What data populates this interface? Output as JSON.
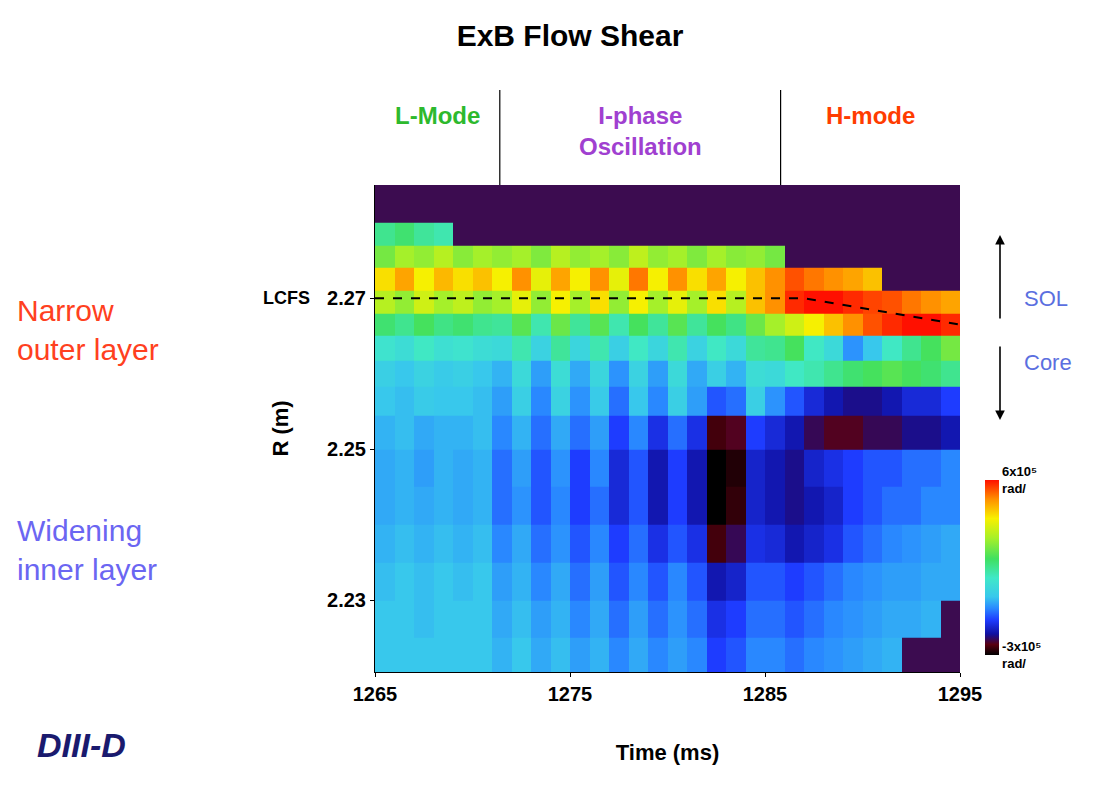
{
  "chart_data": {
    "type": "heatmap",
    "title": "ExB Flow Shear",
    "x_label": "Time (ms)",
    "y_label": "R (m)",
    "xlim": [
      1265,
      1295
    ],
    "xticks": [
      1265,
      1275,
      1285,
      1295
    ],
    "ylim": [
      2.2205,
      2.285
    ],
    "yticks": [
      2.23,
      2.25,
      2.27
    ],
    "grid": false,
    "zlim": [
      -300000,
      600000
    ],
    "zticks": [
      {
        "value": -300000,
        "label": "-3x10⁵ rad/"
      },
      {
        "value": 600000,
        "label": "6x10⁵ rad/"
      }
    ],
    "x": [
      1265.5,
      1266.5,
      1267.5,
      1268.5,
      1269.5,
      1270.5,
      1271.5,
      1272.5,
      1273.5,
      1274.5,
      1275.5,
      1276.5,
      1277.5,
      1278.5,
      1279.5,
      1280.5,
      1281.5,
      1282.5,
      1283.5,
      1284.5,
      1285.5,
      1286.5,
      1287.5,
      1288.5,
      1289.5,
      1290.5,
      1291.5,
      1292.5,
      1293.5,
      1294.5
    ],
    "y": [
      2.2225,
      2.2275,
      2.2325,
      2.2375,
      2.2425,
      2.2475,
      2.2525,
      2.2565,
      2.26,
      2.2635,
      2.2665,
      2.2695,
      2.2725,
      2.2755,
      2.2785
    ],
    "z": [
      [
        0,
        0,
        0,
        0,
        0,
        0,
        -20000,
        0,
        -30000,
        -10000,
        -40000,
        -20000,
        -60000,
        -30000,
        -60000,
        -40000,
        -60000,
        -120000,
        -100000,
        -60000,
        -60000,
        -80000,
        -60000,
        -50000,
        -40000,
        -30000,
        -20000,
        null,
        null,
        null
      ],
      [
        0,
        0,
        -10000,
        0,
        0,
        0,
        -30000,
        -10000,
        -40000,
        -20000,
        -60000,
        -30000,
        -80000,
        -40000,
        -80000,
        -50000,
        -80000,
        -140000,
        -120000,
        -80000,
        -80000,
        -100000,
        -80000,
        -60000,
        -50000,
        -40000,
        -30000,
        -30000,
        -20000,
        null
      ],
      [
        -10000,
        0,
        -10000,
        0,
        -10000,
        0,
        -40000,
        -20000,
        -60000,
        -30000,
        -80000,
        -40000,
        -100000,
        -60000,
        -100000,
        -60000,
        -100000,
        -180000,
        -160000,
        -100000,
        -100000,
        -120000,
        -100000,
        -80000,
        -60000,
        -50000,
        -40000,
        -40000,
        -30000,
        -30000
      ],
      [
        -20000,
        -10000,
        -20000,
        -10000,
        -20000,
        -10000,
        -60000,
        -30000,
        -80000,
        -50000,
        -100000,
        -60000,
        -120000,
        -80000,
        -140000,
        -100000,
        -140000,
        -260000,
        -220000,
        -140000,
        -150000,
        -180000,
        -160000,
        -140000,
        -100000,
        -80000,
        -60000,
        -50000,
        -40000,
        -30000
      ],
      [
        -30000,
        -20000,
        -30000,
        -20000,
        -30000,
        -20000,
        -80000,
        -50000,
        -100000,
        -60000,
        -120000,
        -80000,
        -150000,
        -100000,
        -180000,
        -120000,
        -180000,
        -300000,
        -270000,
        -160000,
        -180000,
        -200000,
        -180000,
        -160000,
        -120000,
        -100000,
        -80000,
        -80000,
        -60000,
        -60000
      ],
      [
        -30000,
        -20000,
        -40000,
        -20000,
        -30000,
        -20000,
        -80000,
        -40000,
        -100000,
        -50000,
        -120000,
        -60000,
        -150000,
        -100000,
        -180000,
        -120000,
        -180000,
        -300000,
        -280000,
        -160000,
        -180000,
        -200000,
        -160000,
        -140000,
        -120000,
        -100000,
        -100000,
        -80000,
        -80000,
        -60000
      ],
      [
        -20000,
        -10000,
        -30000,
        -20000,
        -20000,
        -10000,
        -60000,
        -20000,
        -80000,
        -30000,
        -80000,
        -40000,
        -120000,
        -60000,
        -140000,
        -80000,
        -140000,
        -260000,
        -240000,
        -120000,
        -150000,
        -180000,
        -220000,
        -240000,
        -240000,
        -220000,
        -220000,
        -200000,
        -200000,
        -180000
      ],
      [
        0,
        -10000,
        10000,
        0,
        0,
        -10000,
        -40000,
        20000,
        -60000,
        30000,
        -50000,
        10000,
        -80000,
        0,
        -60000,
        20000,
        -40000,
        -100000,
        -80000,
        20000,
        -50000,
        -100000,
        -150000,
        -180000,
        -200000,
        -200000,
        -180000,
        -150000,
        -150000,
        -120000
      ],
      [
        20000,
        0,
        30000,
        10000,
        20000,
        0,
        -20000,
        50000,
        -40000,
        60000,
        -30000,
        40000,
        -50000,
        30000,
        -40000,
        50000,
        -30000,
        20000,
        -20000,
        60000,
        50000,
        100000,
        120000,
        150000,
        180000,
        200000,
        220000,
        200000,
        180000,
        150000
      ],
      [
        80000,
        60000,
        100000,
        70000,
        80000,
        60000,
        50000,
        120000,
        30000,
        140000,
        40000,
        120000,
        20000,
        100000,
        40000,
        120000,
        30000,
        100000,
        50000,
        140000,
        150000,
        200000,
        100000,
        50000,
        -50000,
        0,
        100000,
        150000,
        200000,
        250000
      ],
      [
        180000,
        150000,
        200000,
        160000,
        180000,
        150000,
        140000,
        220000,
        120000,
        240000,
        140000,
        220000,
        120000,
        200000,
        140000,
        220000,
        140000,
        200000,
        160000,
        240000,
        300000,
        350000,
        400000,
        450000,
        500000,
        550000,
        580000,
        600000,
        600000,
        580000
      ],
      [
        320000,
        280000,
        350000,
        300000,
        330000,
        280000,
        300000,
        380000,
        280000,
        400000,
        300000,
        420000,
        280000,
        400000,
        300000,
        380000,
        300000,
        420000,
        320000,
        450000,
        500000,
        580000,
        600000,
        600000,
        580000,
        560000,
        550000,
        520000,
        500000,
        480000
      ],
      [
        420000,
        480000,
        400000,
        460000,
        420000,
        450000,
        400000,
        500000,
        380000,
        480000,
        400000,
        500000,
        380000,
        520000,
        400000,
        500000,
        420000,
        480000,
        400000,
        450000,
        500000,
        550000,
        520000,
        500000,
        480000,
        450000,
        null,
        null,
        null,
        null
      ],
      [
        250000,
        300000,
        280000,
        320000,
        270000,
        300000,
        280000,
        300000,
        260000,
        320000,
        280000,
        300000,
        270000,
        330000,
        280000,
        300000,
        260000,
        300000,
        270000,
        280000,
        250000,
        null,
        null,
        null,
        null,
        null,
        null,
        null,
        null,
        null
      ],
      [
        150000,
        180000,
        140000,
        120000,
        null,
        null,
        null,
        null,
        null,
        null,
        null,
        null,
        null,
        null,
        null,
        null,
        null,
        null,
        null,
        null,
        null,
        null,
        null,
        null,
        null,
        null,
        null,
        null,
        null,
        null
      ]
    ],
    "lcfs": {
      "label": "LCFS",
      "x": [
        1265,
        1287,
        1295
      ],
      "y": [
        2.27,
        2.27,
        2.2665
      ],
      "line_style": "dash",
      "color": "#000000"
    },
    "phases": [
      {
        "label": "L-Mode",
        "start": 1265,
        "end": 1271.4,
        "color": "#2db92d"
      },
      {
        "label": "I-phase Oscillation",
        "start": 1271.4,
        "end": 1285.8,
        "color": "#a040d0"
      },
      {
        "label": "H-mode",
        "start": 1285.8,
        "end": 1295,
        "color": "#ff3c00"
      }
    ],
    "annotations": [
      {
        "text": "Narrow outer layer",
        "color": "#ff4020"
      },
      {
        "text": "Widening inner layer",
        "color": "#6b66f2"
      }
    ],
    "side_labels": [
      {
        "text": "SOL",
        "color": "#5b6fe0"
      },
      {
        "text": "Core",
        "color": "#5b6fe0"
      }
    ],
    "logo": "DIII-D"
  }
}
